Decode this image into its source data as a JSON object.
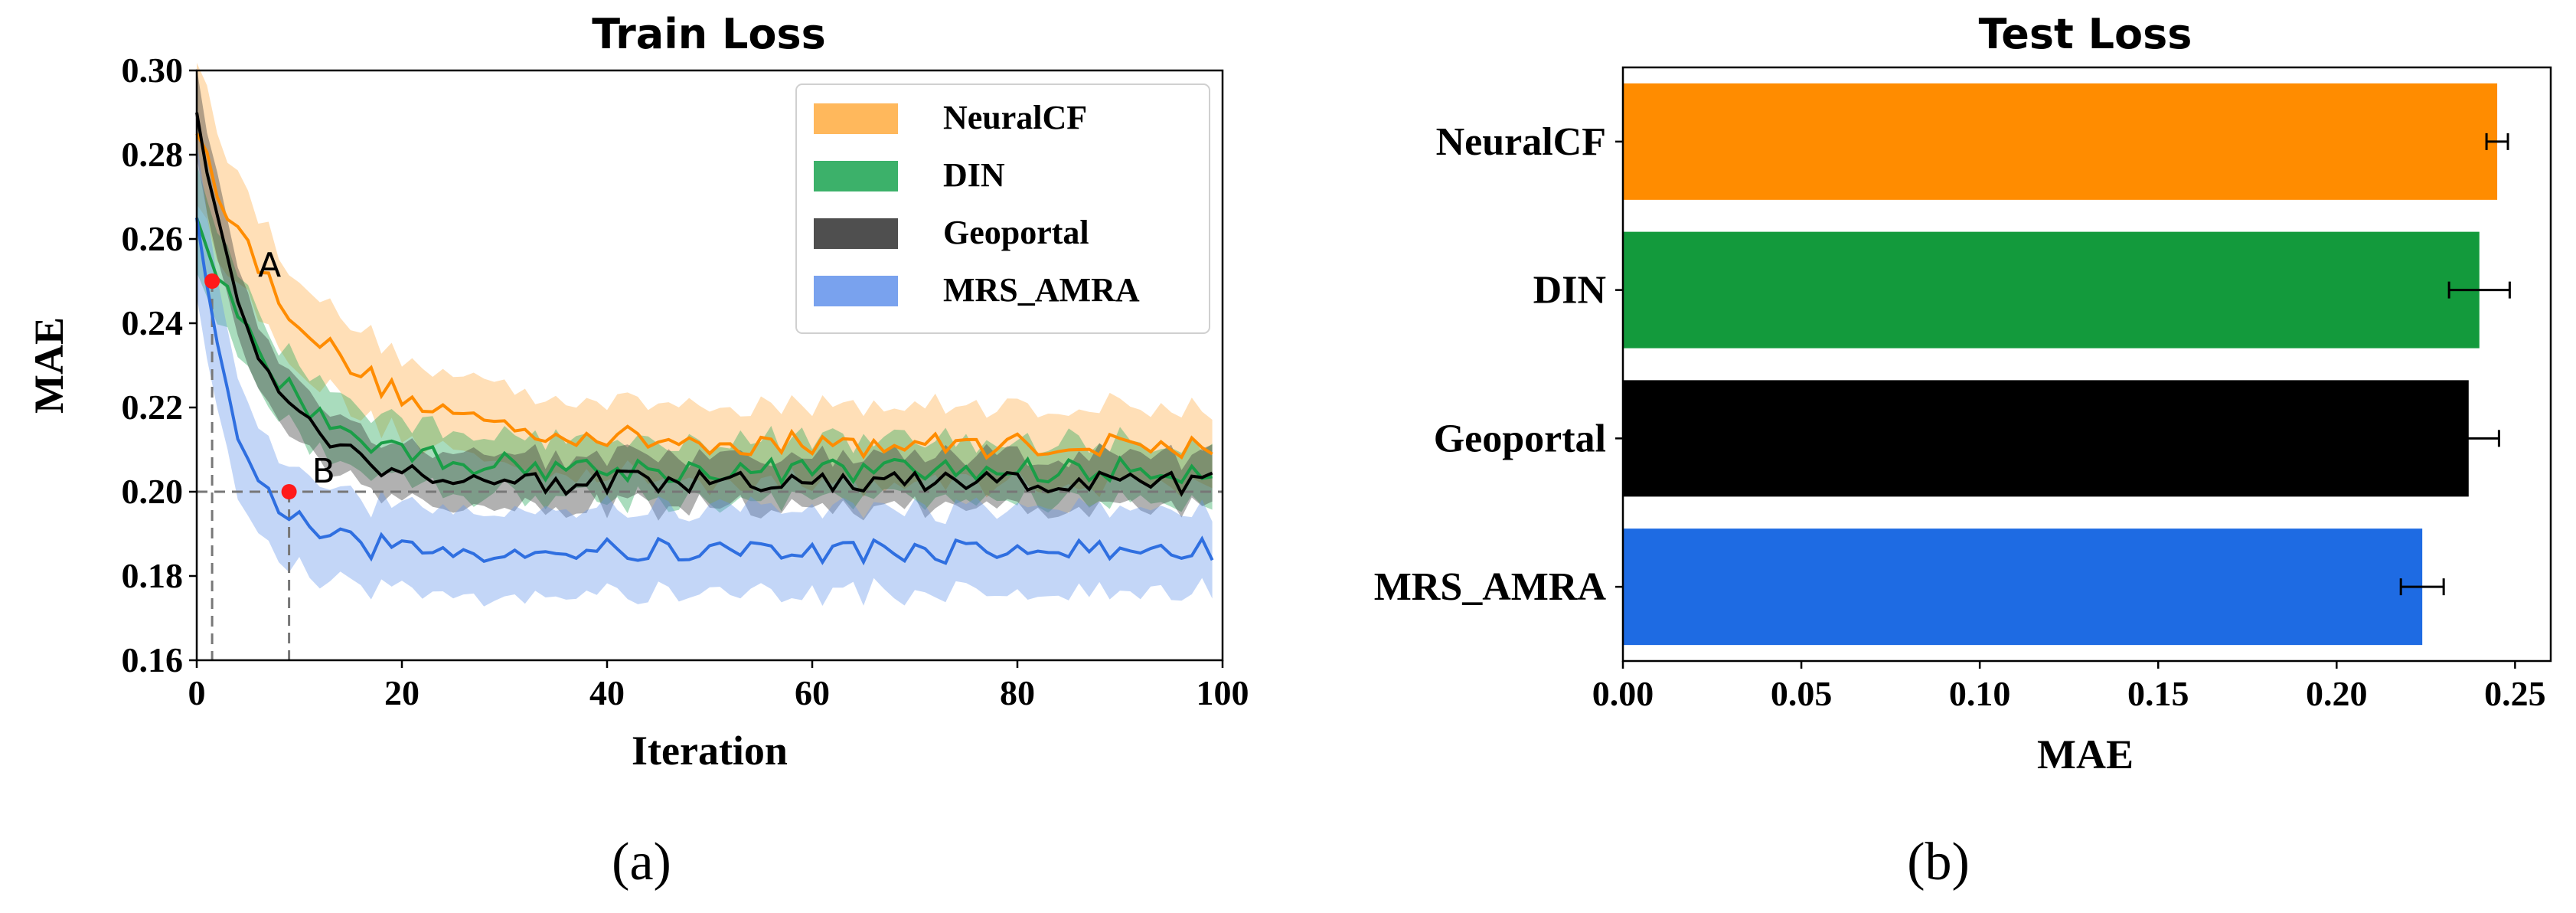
{
  "chart_data": [
    {
      "type": "line",
      "title": "Train Loss",
      "xlabel": "Iteration",
      "ylabel": "MAE",
      "xlim": [
        0,
        100
      ],
      "ylim": [
        0.16,
        0.3
      ],
      "xticks": [
        "0",
        "20",
        "40",
        "60",
        "80",
        "100"
      ],
      "yticks": [
        "0.16",
        "0.18",
        "0.20",
        "0.22",
        "0.24",
        "0.26",
        "0.28",
        "0.30"
      ],
      "legend_position": "top-right",
      "series": [
        {
          "name": "NeuralCF",
          "color": "#ff8c00",
          "band_color": "#ffb04a",
          "start": 0.285,
          "end": 0.211,
          "tau": 11,
          "band": 0.008
        },
        {
          "name": "DIN",
          "color": "#1a9e47",
          "band_color": "#27a85a",
          "start": 0.265,
          "end": 0.205,
          "tau": 8,
          "band": 0.006
        },
        {
          "name": "Geoportal",
          "color": "#000000",
          "band_color": "#3c3c3c",
          "start": 0.29,
          "end": 0.202,
          "tau": 6,
          "band": 0.005
        },
        {
          "name": "MRS_AMRA",
          "color": "#2f6fe0",
          "band_color": "#6a98ec",
          "start": 0.265,
          "end": 0.186,
          "tau": 4,
          "band": 0.009
        }
      ],
      "annotations": [
        {
          "label": "A",
          "x": 1.5,
          "y": 0.25
        },
        {
          "label": "B",
          "x": 9,
          "y": 0.2
        }
      ]
    },
    {
      "type": "bar",
      "orientation": "horizontal",
      "title": "Test Loss",
      "xlabel": "MAE",
      "xlim": [
        0,
        0.26
      ],
      "xticks": [
        "0.00",
        "0.05",
        "0.10",
        "0.15",
        "0.20",
        "0.25"
      ],
      "categories": [
        "NeuralCF",
        "DIN",
        "Geoportal",
        "MRS_AMRA"
      ],
      "values": [
        0.245,
        0.24,
        0.237,
        0.224
      ],
      "errors": [
        0.003,
        0.0085,
        0.0085,
        0.006
      ],
      "colors": [
        "#ff8c00",
        "#139a3c",
        "#000000",
        "#1e6be3"
      ]
    }
  ],
  "captions": {
    "a": "(a)",
    "b": "(b)"
  }
}
